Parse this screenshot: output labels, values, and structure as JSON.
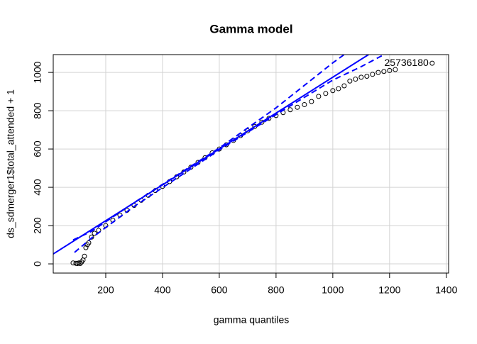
{
  "chart_data": {
    "type": "scatter",
    "title": "Gamma model",
    "x_label": "gamma quantiles",
    "y_label": "ds_sdmerger1$total_attended + 1",
    "xlim": [
      15,
      1408
    ],
    "ylim": [
      -48,
      1093
    ],
    "xticks": [
      200,
      400,
      600,
      800,
      1000,
      1200,
      1400
    ],
    "yticks": [
      0,
      200,
      400,
      600,
      800,
      1000
    ],
    "grid": true,
    "series": [
      {
        "kind": "points",
        "color": "#000000",
        "x": [
          85,
          95,
          100,
          105,
          110,
          115,
          120,
          125,
          130,
          135,
          140,
          150,
          160,
          175,
          200,
          225,
          250,
          275,
          300,
          325,
          350,
          375,
          400,
          425,
          450,
          475,
          500,
          525,
          550,
          575,
          600,
          625,
          650,
          675,
          700,
          725,
          750,
          775,
          800,
          825,
          850,
          875,
          900,
          925,
          950,
          975,
          1000,
          1020,
          1040,
          1060,
          1080,
          1100,
          1120,
          1140,
          1160,
          1180,
          1200,
          1220,
          1350
        ],
        "y": [
          5,
          3,
          2,
          5,
          2,
          10,
          20,
          40,
          85,
          100,
          110,
          140,
          160,
          175,
          200,
          228,
          255,
          280,
          305,
          332,
          358,
          383,
          405,
          430,
          455,
          480,
          505,
          530,
          555,
          580,
          600,
          622,
          645,
          670,
          695,
          718,
          740,
          760,
          775,
          790,
          805,
          818,
          832,
          848,
          875,
          890,
          905,
          915,
          930,
          955,
          965,
          975,
          980,
          990,
          1000,
          1005,
          1010,
          1015,
          1048
        ]
      },
      {
        "kind": "line",
        "line_style": "solid",
        "color": "#0000ff",
        "x": [
          15,
          1126
        ],
        "y": [
          52,
          1093
        ]
      },
      {
        "kind": "line",
        "line_style": "dashed",
        "color": "#0000ff",
        "x": [
          85,
          150,
          300,
          600,
          800,
          1000,
          1040
        ],
        "y": [
          125,
          170,
          320,
          605,
          815,
          1050,
          1093
        ]
      },
      {
        "kind": "line",
        "line_style": "dashed",
        "color": "#0000ff",
        "x": [
          90,
          150,
          300,
          600,
          800,
          1000,
          1100,
          1180
        ],
        "y": [
          60,
          135,
          300,
          595,
          780,
          960,
          1030,
          1093
        ]
      }
    ],
    "annotation": {
      "text": "25736180",
      "x": 1350,
      "y": 1048
    }
  }
}
